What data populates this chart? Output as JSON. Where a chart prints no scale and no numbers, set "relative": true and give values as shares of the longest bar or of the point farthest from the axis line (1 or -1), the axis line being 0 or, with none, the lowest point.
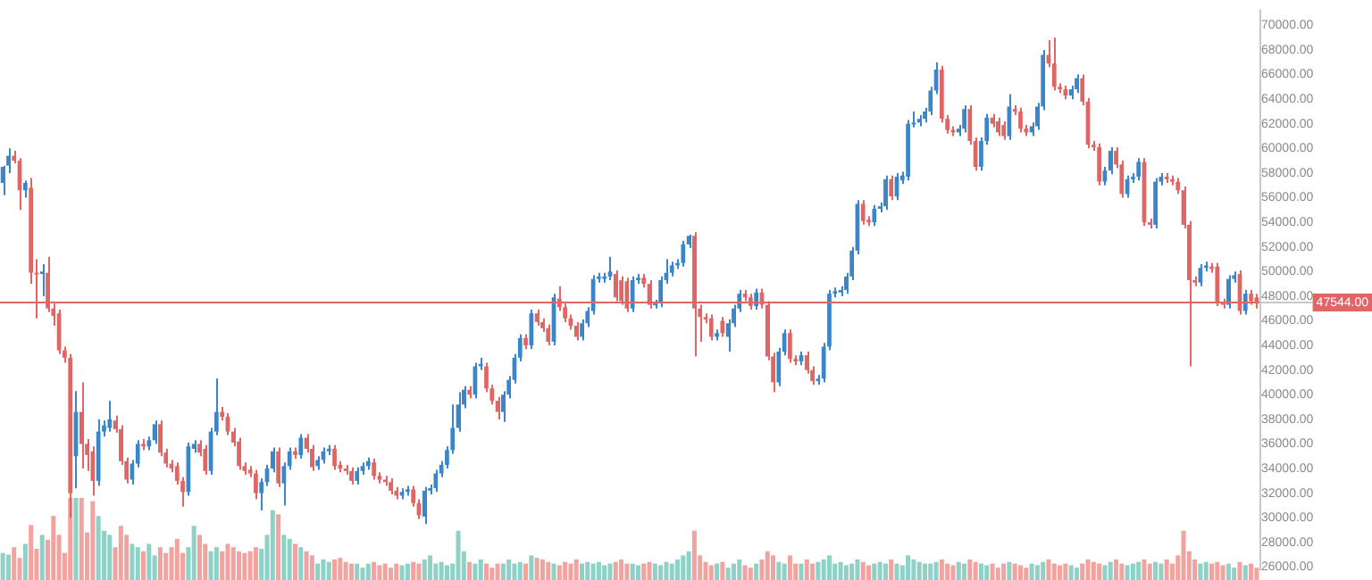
{
  "chart_data": [
    {
      "type": "candlestick",
      "categories": [
        null,
        null,
        null,
        null,
        null,
        null,
        null,
        null,
        null,
        null,
        null,
        null,
        null,
        null,
        null,
        null,
        null,
        null,
        null,
        null,
        null,
        null,
        null,
        null,
        null,
        null,
        null,
        null,
        null,
        null,
        null,
        null,
        null,
        null,
        null,
        null,
        null,
        null,
        null,
        null,
        null,
        null,
        null,
        null,
        null,
        null,
        null,
        null,
        null,
        null,
        null,
        null,
        null,
        null,
        null,
        null,
        null,
        null,
        null,
        null,
        null,
        null,
        null,
        null,
        null,
        null,
        null,
        null,
        null,
        null,
        null,
        null,
        null,
        null,
        null,
        null,
        null,
        null,
        null,
        null,
        null,
        null,
        null,
        null,
        null,
        null,
        null,
        null,
        null,
        null,
        null,
        null,
        null,
        null,
        null,
        null,
        null,
        null,
        null,
        null,
        null,
        null,
        null,
        null,
        null,
        null,
        null,
        null,
        null,
        null,
        null,
        null,
        null,
        null,
        null,
        null,
        null,
        null,
        null,
        null,
        null,
        null,
        null,
        null,
        null,
        null,
        null,
        null,
        null,
        null,
        null,
        null,
        null,
        null,
        null,
        null,
        null,
        null,
        null,
        null,
        null,
        null,
        null,
        null,
        null,
        null,
        null,
        null,
        null,
        null,
        null,
        null,
        null,
        null,
        null,
        null,
        null,
        null,
        null,
        null,
        null,
        null,
        null,
        null,
        null,
        null,
        null,
        null,
        null,
        null,
        null,
        null,
        null,
        null,
        null,
        null,
        null,
        null,
        null,
        null,
        null,
        null,
        null,
        null,
        null,
        null,
        null,
        null,
        null,
        null,
        null,
        null,
        null,
        null,
        null,
        null,
        null,
        null,
        null,
        null,
        null,
        null,
        null,
        null,
        null,
        null,
        null,
        null,
        null,
        null,
        null,
        null,
        null,
        null,
        null,
        null,
        null,
        null,
        null,
        null,
        null,
        null,
        null,
        null
      ],
      "ohlc": [
        [
          57200,
          58600,
          56200,
          58500
        ],
        [
          58600,
          60000,
          58000,
          59400
        ],
        [
          59400,
          59800,
          58800,
          59000
        ],
        [
          59000,
          59200,
          55000,
          56600
        ],
        [
          56600,
          57400,
          56000,
          57200
        ],
        [
          56800,
          57600,
          49000,
          49900
        ],
        [
          49900,
          51000,
          46200,
          49800
        ],
        [
          49800,
          50600,
          48000,
          50000
        ],
        [
          49900,
          51200,
          46700,
          47000
        ],
        [
          47000,
          47400,
          45600,
          46400
        ],
        [
          46600,
          46900,
          43300,
          43600
        ],
        [
          43600,
          43900,
          42600,
          43000
        ],
        [
          43000,
          43300,
          30000,
          32000
        ],
        [
          35000,
          40300,
          32400,
          38600
        ],
        [
          38600,
          41000,
          34000,
          36000
        ],
        [
          36000,
          36400,
          33800,
          35100
        ],
        [
          35400,
          35800,
          31800,
          33000
        ],
        [
          33000,
          38000,
          32600,
          37000
        ],
        [
          37000,
          37900,
          36600,
          37500
        ],
        [
          37300,
          39500,
          37000,
          38000
        ],
        [
          37900,
          38300,
          36900,
          37200
        ],
        [
          37200,
          37500,
          34300,
          34600
        ],
        [
          34600,
          34900,
          32800,
          33100
        ],
        [
          33100,
          34700,
          32700,
          34400
        ],
        [
          34400,
          36300,
          34100,
          36000
        ],
        [
          36000,
          36400,
          35500,
          35800
        ],
        [
          35800,
          36600,
          35500,
          36300
        ],
        [
          36300,
          37900,
          36000,
          37600
        ],
        [
          37600,
          37900,
          35000,
          35300
        ],
        [
          35300,
          35600,
          34100,
          34400
        ],
        [
          34400,
          34700,
          33700,
          34000
        ],
        [
          34200,
          34500,
          32700,
          33000
        ],
        [
          33000,
          33300,
          30900,
          32100
        ],
        [
          32100,
          36100,
          31800,
          35800
        ],
        [
          35600,
          36300,
          35300,
          36000
        ],
        [
          36000,
          36300,
          35000,
          35300
        ],
        [
          35600,
          35900,
          33500,
          33800
        ],
        [
          33800,
          37300,
          33500,
          37000
        ],
        [
          37000,
          41300,
          36700,
          38600
        ],
        [
          38600,
          39000,
          37900,
          38200
        ],
        [
          38200,
          38500,
          36700,
          37000
        ],
        [
          37000,
          37300,
          35800,
          36100
        ],
        [
          36200,
          36500,
          33900,
          34200
        ],
        [
          34200,
          34500,
          33500,
          33800
        ],
        [
          33900,
          34200,
          33300,
          33600
        ],
        [
          33600,
          33900,
          31500,
          32000
        ],
        [
          32000,
          33200,
          30600,
          32900
        ],
        [
          32900,
          34300,
          32600,
          34000
        ],
        [
          34000,
          35700,
          33700,
          35400
        ],
        [
          35400,
          35700,
          32500,
          32800
        ],
        [
          32800,
          34500,
          31000,
          34200
        ],
        [
          34200,
          35700,
          33900,
          35400
        ],
        [
          35400,
          35700,
          34800,
          35100
        ],
        [
          35100,
          36800,
          34800,
          36500
        ],
        [
          36500,
          36800,
          35300,
          35600
        ],
        [
          35600,
          35900,
          33800,
          34100
        ],
        [
          34200,
          35000,
          33900,
          34700
        ],
        [
          34700,
          35700,
          34400,
          35400
        ],
        [
          35400,
          35900,
          35100,
          35600
        ],
        [
          35600,
          35900,
          33900,
          34200
        ],
        [
          34300,
          34600,
          33700,
          34000
        ],
        [
          34000,
          34300,
          33500,
          33800
        ],
        [
          33800,
          34100,
          32700,
          33000
        ],
        [
          33000,
          34100,
          32700,
          33800
        ],
        [
          33800,
          34500,
          33500,
          34200
        ],
        [
          34200,
          34900,
          33900,
          34600
        ],
        [
          34500,
          34800,
          33100,
          33400
        ],
        [
          33400,
          33700,
          32800,
          33100
        ],
        [
          33100,
          33400,
          32600,
          32900
        ],
        [
          32900,
          33200,
          31900,
          32200
        ],
        [
          32200,
          32500,
          31500,
          31800
        ],
        [
          31800,
          32400,
          31500,
          32100
        ],
        [
          32100,
          32600,
          31800,
          32300
        ],
        [
          32300,
          32600,
          30900,
          31200
        ],
        [
          31200,
          31500,
          29900,
          30200
        ],
        [
          30100,
          32500,
          29500,
          32200
        ],
        [
          32200,
          32700,
          31900,
          32400
        ],
        [
          32400,
          33900,
          32100,
          33600
        ],
        [
          33600,
          34600,
          33300,
          34300
        ],
        [
          34300,
          35800,
          34000,
          35500
        ],
        [
          35500,
          39200,
          35200,
          37300
        ],
        [
          37300,
          40200,
          37000,
          39200
        ],
        [
          39200,
          40700,
          38900,
          40400
        ],
        [
          40400,
          40700,
          39700,
          40000
        ],
        [
          40000,
          42600,
          39700,
          42300
        ],
        [
          42300,
          43000,
          42000,
          42500
        ],
        [
          42300,
          42600,
          40200,
          40500
        ],
        [
          40500,
          40800,
          39200,
          39500
        ],
        [
          39500,
          39800,
          38000,
          38600
        ],
        [
          38600,
          40300,
          37800,
          40000
        ],
        [
          40000,
          41500,
          39700,
          41200
        ],
        [
          41200,
          43300,
          40900,
          43000
        ],
        [
          43000,
          44900,
          42700,
          44600
        ],
        [
          44600,
          44900,
          43700,
          44000
        ],
        [
          44000,
          46900,
          43700,
          46600
        ],
        [
          46600,
          46900,
          45600,
          45900
        ],
        [
          45900,
          46200,
          45100,
          45400
        ],
        [
          45400,
          45700,
          44000,
          44300
        ],
        [
          44300,
          48200,
          44000,
          47900
        ],
        [
          47800,
          48800,
          46800,
          47100
        ],
        [
          47100,
          47400,
          45900,
          46200
        ],
        [
          46200,
          46500,
          45300,
          45600
        ],
        [
          45600,
          45900,
          44400,
          44700
        ],
        [
          44700,
          46100,
          44400,
          45800
        ],
        [
          45800,
          47100,
          45500,
          46800
        ],
        [
          46800,
          49700,
          46500,
          49400
        ],
        [
          49400,
          49900,
          49100,
          49600
        ],
        [
          49400,
          49900,
          49100,
          49600
        ],
        [
          49600,
          51200,
          49300,
          50000
        ],
        [
          49800,
          50100,
          47600,
          47900
        ],
        [
          49300,
          49600,
          47300,
          47600
        ],
        [
          49200,
          49500,
          46700,
          47000
        ],
        [
          47000,
          49600,
          46700,
          49300
        ],
        [
          49300,
          49800,
          49000,
          49500
        ],
        [
          49500,
          49800,
          48700,
          49000
        ],
        [
          49000,
          49300,
          47000,
          47300
        ],
        [
          47300,
          47700,
          47000,
          47400
        ],
        [
          47400,
          49600,
          47100,
          49300
        ],
        [
          49300,
          51000,
          49000,
          49900
        ],
        [
          49900,
          50800,
          49600,
          50500
        ],
        [
          50500,
          51000,
          50200,
          50700
        ],
        [
          50700,
          52500,
          50400,
          52200
        ],
        [
          52200,
          53000,
          51900,
          52900
        ],
        [
          52900,
          53200,
          43100,
          47000
        ],
        [
          47000,
          47300,
          44300,
          46300
        ],
        [
          46300,
          46600,
          45800,
          46100
        ],
        [
          46200,
          46500,
          44400,
          44700
        ],
        [
          44700,
          45300,
          44400,
          45000
        ],
        [
          46000,
          46300,
          44700,
          45000
        ],
        [
          44700,
          46100,
          43500,
          45800
        ],
        [
          45800,
          47300,
          45500,
          47000
        ],
        [
          47000,
          48500,
          46700,
          48200
        ],
        [
          48200,
          48500,
          47600,
          47900
        ],
        [
          47900,
          48200,
          46900,
          47200
        ],
        [
          47200,
          48600,
          46900,
          48300
        ],
        [
          48300,
          48600,
          47000,
          47300
        ],
        [
          47300,
          47600,
          42800,
          43100
        ],
        [
          43100,
          43400,
          40200,
          41000
        ],
        [
          41000,
          43800,
          40700,
          43500
        ],
        [
          43500,
          45300,
          43200,
          45000
        ],
        [
          45000,
          45300,
          42600,
          42900
        ],
        [
          42900,
          43200,
          42400,
          42700
        ],
        [
          42700,
          43500,
          42400,
          43200
        ],
        [
          43200,
          43500,
          41700,
          42000
        ],
        [
          42000,
          42300,
          40800,
          41100
        ],
        [
          41100,
          41600,
          40800,
          41300
        ],
        [
          41300,
          44200,
          41000,
          43900
        ],
        [
          43900,
          48500,
          43600,
          48200
        ],
        [
          48200,
          48700,
          47900,
          48400
        ],
        [
          48300,
          48800,
          48000,
          48500
        ],
        [
          48500,
          49900,
          48200,
          49600
        ],
        [
          49600,
          52000,
          49300,
          51700
        ],
        [
          51700,
          55800,
          51400,
          55500
        ],
        [
          55500,
          55800,
          53800,
          54100
        ],
        [
          54200,
          54500,
          53700,
          54000
        ],
        [
          54000,
          55400,
          53700,
          55100
        ],
        [
          55100,
          55600,
          54800,
          55300
        ],
        [
          55300,
          57800,
          55000,
          57500
        ],
        [
          57500,
          57800,
          55800,
          56100
        ],
        [
          56100,
          58000,
          55800,
          57700
        ],
        [
          57400,
          58100,
          57100,
          57800
        ],
        [
          57700,
          62300,
          57400,
          62000
        ],
        [
          62000,
          63000,
          61700,
          62100
        ],
        [
          62100,
          62700,
          61800,
          62400
        ],
        [
          62400,
          63300,
          62100,
          63000
        ],
        [
          63000,
          65000,
          62700,
          64700
        ],
        [
          64700,
          67000,
          64400,
          66400
        ],
        [
          66400,
          66700,
          62100,
          62400
        ],
        [
          62400,
          62700,
          61200,
          61500
        ],
        [
          61500,
          61800,
          61000,
          61300
        ],
        [
          61300,
          61900,
          61000,
          61600
        ],
        [
          61600,
          63500,
          61300,
          63200
        ],
        [
          63200,
          63500,
          60300,
          60600
        ],
        [
          60600,
          60900,
          58200,
          58500
        ],
        [
          58500,
          60900,
          58200,
          60600
        ],
        [
          60600,
          62800,
          60300,
          62500
        ],
        [
          62500,
          62800,
          61700,
          62000
        ],
        [
          62200,
          62500,
          61000,
          61300
        ],
        [
          61900,
          62200,
          60700,
          61000
        ],
        [
          61000,
          64400,
          60700,
          63400
        ],
        [
          63200,
          63500,
          62700,
          63000
        ],
        [
          63000,
          63300,
          61300,
          61600
        ],
        [
          61600,
          61900,
          61000,
          61300
        ],
        [
          61300,
          62100,
          61000,
          61800
        ],
        [
          61800,
          63700,
          61500,
          63400
        ],
        [
          63400,
          68000,
          63100,
          67600
        ],
        [
          67600,
          68800,
          66600,
          66900
        ],
        [
          66900,
          69000,
          64700,
          65000
        ],
        [
          65000,
          65300,
          64500,
          64800
        ],
        [
          64800,
          65100,
          64000,
          64300
        ],
        [
          64300,
          65100,
          64000,
          64800
        ],
        [
          64800,
          66000,
          64500,
          65700
        ],
        [
          65700,
          66000,
          63500,
          63800
        ],
        [
          63800,
          64100,
          60000,
          60300
        ],
        [
          60300,
          60600,
          59800,
          60100
        ],
        [
          60100,
          60400,
          57000,
          57300
        ],
        [
          57300,
          58500,
          57000,
          58200
        ],
        [
          58200,
          60100,
          57900,
          59800
        ],
        [
          59800,
          60100,
          58400,
          58700
        ],
        [
          58700,
          59000,
          56000,
          56300
        ],
        [
          56300,
          57800,
          56000,
          57500
        ],
        [
          57500,
          58000,
          57200,
          57700
        ],
        [
          57700,
          59200,
          57400,
          58900
        ],
        [
          58900,
          59200,
          53700,
          54000
        ],
        [
          54000,
          54300,
          53500,
          53800
        ],
        [
          53800,
          57600,
          53500,
          57300
        ],
        [
          57300,
          58000,
          57000,
          57700
        ],
        [
          57700,
          58000,
          57200,
          57500
        ],
        [
          57500,
          57800,
          57000,
          57300
        ],
        [
          57300,
          57600,
          56300,
          56600
        ],
        [
          56600,
          56900,
          53500,
          53800
        ],
        [
          53800,
          54100,
          42300,
          49300
        ],
        [
          49300,
          49600,
          48800,
          49100
        ],
        [
          49100,
          50600,
          48800,
          50300
        ],
        [
          50300,
          50800,
          50000,
          50500
        ],
        [
          50400,
          50700,
          49900,
          50200
        ],
        [
          50400,
          50700,
          47200,
          47500
        ],
        [
          47500,
          47800,
          47000,
          47300
        ],
        [
          47300,
          49700,
          47000,
          49400
        ],
        [
          49400,
          50000,
          49100,
          49700
        ],
        [
          49800,
          50100,
          46500,
          46800
        ],
        [
          46800,
          48500,
          46500,
          48200
        ],
        [
          48200,
          48500,
          47300,
          47600
        ],
        [
          47900,
          48200,
          47000,
          47544
        ]
      ],
      "colors": [
        "#3a86c8",
        "#3a86c8",
        "#e06666",
        "#e06666",
        "#3a86c8",
        "#e06666",
        "#e06666",
        "#3a86c8",
        "#e06666",
        "#e06666",
        "#e06666",
        "#e06666",
        "#e06666",
        "#3a86c8",
        "#e06666",
        "#e06666",
        "#e06666",
        "#3a86c8",
        "#3a86c8",
        "#3a86c8",
        "#e06666",
        "#e06666",
        "#e06666",
        "#3a86c8",
        "#3a86c8",
        "#e06666",
        "#3a86c8",
        "#3a86c8",
        "#e06666",
        "#e06666",
        "#e06666",
        "#e06666",
        "#e06666",
        "#3a86c8",
        "#3a86c8",
        "#e06666",
        "#e06666",
        "#3a86c8",
        "#3a86c8",
        "#e06666",
        "#e06666",
        "#e06666",
        "#e06666",
        "#e06666",
        "#e06666",
        "#e06666",
        "#3a86c8",
        "#3a86c8",
        "#3a86c8",
        "#e06666",
        "#3a86c8",
        "#3a86c8",
        "#e06666",
        "#3a86c8",
        "#e06666",
        "#e06666",
        "#3a86c8",
        "#3a86c8",
        "#3a86c8",
        "#e06666",
        "#e06666",
        "#e06666",
        "#e06666",
        "#3a86c8",
        "#3a86c8",
        "#3a86c8",
        "#e06666",
        "#e06666",
        "#e06666",
        "#e06666",
        "#e06666",
        "#3a86c8",
        "#3a86c8",
        "#e06666",
        "#e06666",
        "#3a86c8",
        "#3a86c8",
        "#3a86c8",
        "#3a86c8",
        "#3a86c8",
        "#3a86c8",
        "#3a86c8",
        "#3a86c8",
        "#e06666",
        "#3a86c8",
        "#3a86c8",
        "#e06666",
        "#e06666",
        "#e06666",
        "#3a86c8",
        "#3a86c8",
        "#3a86c8",
        "#3a86c8",
        "#e06666",
        "#3a86c8",
        "#e06666",
        "#e06666",
        "#e06666",
        "#3a86c8",
        "#e06666",
        "#e06666",
        "#e06666",
        "#e06666",
        "#3a86c8",
        "#3a86c8",
        "#3a86c8",
        "#3a86c8",
        "#3a86c8",
        "#3a86c8",
        "#e06666",
        "#e06666",
        "#e06666",
        "#3a86c8",
        "#3a86c8",
        "#e06666",
        "#e06666",
        "#3a86c8",
        "#3a86c8",
        "#3a86c8",
        "#3a86c8",
        "#3a86c8",
        "#3a86c8",
        "#3a86c8",
        "#e06666",
        "#e06666",
        "#e06666",
        "#e06666",
        "#3a86c8",
        "#e06666",
        "#3a86c8",
        "#3a86c8",
        "#3a86c8",
        "#e06666",
        "#e06666",
        "#3a86c8",
        "#e06666",
        "#e06666",
        "#e06666",
        "#3a86c8",
        "#3a86c8",
        "#e06666",
        "#e06666",
        "#3a86c8",
        "#e06666",
        "#e06666",
        "#3a86c8",
        "#3a86c8",
        "#3a86c8",
        "#3a86c8",
        "#3a86c8",
        "#3a86c8",
        "#3a86c8",
        "#3a86c8",
        "#e06666",
        "#e06666",
        "#3a86c8",
        "#3a86c8",
        "#3a86c8",
        "#e06666",
        "#3a86c8",
        "#3a86c8",
        "#3a86c8",
        "#3a86c8",
        "#3a86c8",
        "#3a86c8",
        "#3a86c8",
        "#3a86c8",
        "#e06666",
        "#e06666",
        "#e06666",
        "#3a86c8",
        "#3a86c8",
        "#e06666",
        "#e06666",
        "#3a86c8",
        "#3a86c8",
        "#e06666",
        "#e06666",
        "#e06666",
        "#3a86c8",
        "#e06666",
        "#e06666",
        "#e06666",
        "#3a86c8",
        "#3a86c8",
        "#3a86c8",
        "#e06666",
        "#e06666",
        "#e06666",
        "#e06666",
        "#3a86c8",
        "#3a86c8",
        "#e06666",
        "#e06666",
        "#e06666",
        "#e06666",
        "#3a86c8",
        "#3a86c8",
        "#e06666",
        "#e06666",
        "#3a86c8",
        "#3a86c8",
        "#3a86c8",
        "#e06666",
        "#e06666",
        "#3a86c8",
        "#3a86c8",
        "#e06666",
        "#e06666",
        "#e06666",
        "#e06666",
        "#e06666",
        "#e06666",
        "#3a86c8",
        "#3a86c8",
        "#e06666",
        "#e06666",
        "#e06666",
        "#3a86c8",
        "#3a86c8",
        "#e06666",
        "#3a86c8",
        "#e06666",
        "#e06666"
      ],
      "ylim": [
        25700,
        71300
      ],
      "yticks": [
        {
          "value": 26000,
          "label": "26000.00"
        },
        {
          "value": 28000,
          "label": "28000.00"
        },
        {
          "value": 30000,
          "label": "30000.00"
        },
        {
          "value": 32000,
          "label": "32000.00"
        },
        {
          "value": 34000,
          "label": "34000.00"
        },
        {
          "value": 36000,
          "label": "36000.00"
        },
        {
          "value": 38000,
          "label": "38000.00"
        },
        {
          "value": 40000,
          "label": "40000.00"
        },
        {
          "value": 42000,
          "label": "42000.00"
        },
        {
          "value": 44000,
          "label": "44000.00"
        },
        {
          "value": 46000,
          "label": "46000.00"
        },
        {
          "value": 48000,
          "label": "48000.00"
        },
        {
          "value": 50000,
          "label": "50000.00"
        },
        {
          "value": 52000,
          "label": "52000.00"
        },
        {
          "value": 54000,
          "label": "54000.00"
        },
        {
          "value": 56000,
          "label": "56000.00"
        },
        {
          "value": 58000,
          "label": "58000.00"
        },
        {
          "value": 60000,
          "label": "60000.00"
        },
        {
          "value": 62000,
          "label": "62000.00"
        },
        {
          "value": 64000,
          "label": "64000.00"
        },
        {
          "value": 66000,
          "label": "66000.00"
        },
        {
          "value": 68000,
          "label": "68000.00"
        },
        {
          "value": 70000,
          "label": "70000.00"
        }
      ],
      "ref_lines": [
        {
          "axis": "y",
          "value": 47544,
          "label": "47544.00",
          "color": "#e06666"
        }
      ]
    },
    {
      "type": "bar",
      "relative": true,
      "categories": [
        null,
        null,
        null,
        null,
        null,
        null,
        null,
        null,
        null,
        null,
        null,
        null,
        null,
        null,
        null,
        null,
        null,
        null,
        null,
        null,
        null,
        null,
        null,
        null,
        null,
        null,
        null,
        null,
        null,
        null,
        null,
        null,
        null,
        null,
        null,
        null,
        null,
        null,
        null,
        null,
        null,
        null,
        null,
        null,
        null,
        null,
        null,
        null,
        null,
        null,
        null,
        null,
        null,
        null,
        null,
        null,
        null,
        null,
        null,
        null,
        null,
        null,
        null,
        null,
        null,
        null,
        null,
        null,
        null,
        null,
        null,
        null,
        null,
        null,
        null,
        null,
        null,
        null,
        null,
        null,
        null,
        null,
        null,
        null,
        null,
        null,
        null,
        null,
        null,
        null,
        null,
        null,
        null,
        null,
        null,
        null,
        null,
        null,
        null,
        null,
        null,
        null,
        null,
        null,
        null,
        null,
        null,
        null,
        null,
        null,
        null,
        null,
        null,
        null,
        null,
        null,
        null,
        null,
        null,
        null,
        null,
        null,
        null,
        null,
        null,
        null,
        null,
        null,
        null,
        null,
        null,
        null,
        null,
        null,
        null,
        null,
        null,
        null,
        null,
        null,
        null,
        null,
        null,
        null,
        null,
        null,
        null,
        null,
        null,
        null,
        null,
        null,
        null,
        null,
        null,
        null,
        null,
        null,
        null,
        null,
        null,
        null,
        null,
        null,
        null,
        null,
        null,
        null,
        null,
        null,
        null,
        null,
        null,
        null,
        null,
        null,
        null,
        null,
        null,
        null,
        null,
        null,
        null,
        null,
        null,
        null,
        null,
        null,
        null,
        null,
        null,
        null,
        null,
        null,
        null,
        null,
        null,
        null,
        null,
        null,
        null,
        null,
        null,
        null,
        null,
        null,
        null,
        null,
        null,
        null,
        null,
        null,
        null,
        null,
        null,
        null,
        null,
        null,
        null,
        null,
        null,
        null,
        null,
        null
      ],
      "values": [
        0.33,
        0.31,
        0.4,
        0.27,
        0.44,
        0.67,
        0.38,
        0.55,
        0.49,
        0.78,
        0.55,
        0.33,
        1.0,
        1.0,
        1.0,
        0.58,
        0.96,
        0.78,
        0.6,
        0.55,
        0.4,
        0.66,
        0.55,
        0.44,
        0.4,
        0.35,
        0.44,
        0.3,
        0.4,
        0.33,
        0.4,
        0.5,
        0.33,
        0.4,
        0.66,
        0.55,
        0.44,
        0.35,
        0.4,
        0.35,
        0.44,
        0.4,
        0.35,
        0.33,
        0.35,
        0.4,
        0.38,
        0.55,
        0.85,
        0.8,
        0.55,
        0.5,
        0.44,
        0.4,
        0.35,
        0.3,
        0.2,
        0.25,
        0.22,
        0.25,
        0.27,
        0.22,
        0.2,
        0.2,
        0.15,
        0.2,
        0.22,
        0.18,
        0.2,
        0.15,
        0.2,
        0.18,
        0.2,
        0.22,
        0.2,
        0.25,
        0.3,
        0.2,
        0.22,
        0.18,
        0.2,
        0.6,
        0.35,
        0.22,
        0.2,
        0.25,
        0.2,
        0.15,
        0.2,
        0.2,
        0.25,
        0.2,
        0.22,
        0.2,
        0.3,
        0.27,
        0.25,
        0.22,
        0.2,
        0.18,
        0.22,
        0.2,
        0.25,
        0.2,
        0.22,
        0.2,
        0.22,
        0.18,
        0.2,
        0.22,
        0.25,
        0.2,
        0.2,
        0.18,
        0.2,
        0.22,
        0.2,
        0.18,
        0.22,
        0.2,
        0.25,
        0.3,
        0.35,
        0.6,
        0.3,
        0.22,
        0.18,
        0.2,
        0.22,
        0.15,
        0.2,
        0.25,
        0.18,
        0.15,
        0.2,
        0.25,
        0.35,
        0.3,
        0.22,
        0.2,
        0.3,
        0.2,
        0.2,
        0.25,
        0.2,
        0.22,
        0.25,
        0.3,
        0.2,
        0.22,
        0.18,
        0.2,
        0.25,
        0.22,
        0.18,
        0.2,
        0.22,
        0.2,
        0.25,
        0.2,
        0.18,
        0.3,
        0.25,
        0.22,
        0.2,
        0.2,
        0.22,
        0.25,
        0.2,
        0.18,
        0.22,
        0.2,
        0.25,
        0.22,
        0.2,
        0.18,
        0.2,
        0.15,
        0.2,
        0.22,
        0.2,
        0.18,
        0.15,
        0.2,
        0.18,
        0.22,
        0.25,
        0.2,
        0.18,
        0.2,
        0.18,
        0.15,
        0.2,
        0.25,
        0.22,
        0.2,
        0.18,
        0.22,
        0.25,
        0.2,
        0.18,
        0.2,
        0.22,
        0.25,
        0.2,
        0.22,
        0.2,
        0.25,
        0.2,
        0.3,
        0.6,
        0.35,
        0.25,
        0.2,
        0.22,
        0.2,
        0.22,
        0.18,
        0.2,
        0.15,
        0.22,
        0.18,
        0.2,
        0.15
      ],
      "colors": [
        "#8ed1c6",
        "#8ed1c6",
        "#f3a39f",
        "#f3a39f",
        "#8ed1c6",
        "#f3a39f",
        "#f3a39f",
        "#8ed1c6",
        "#f3a39f",
        "#f3a39f",
        "#f3a39f",
        "#f3a39f",
        "#f3a39f",
        "#8ed1c6",
        "#f3a39f",
        "#f3a39f",
        "#f3a39f",
        "#8ed1c6",
        "#8ed1c6",
        "#8ed1c6",
        "#f3a39f",
        "#f3a39f",
        "#f3a39f",
        "#8ed1c6",
        "#8ed1c6",
        "#f3a39f",
        "#8ed1c6",
        "#8ed1c6",
        "#f3a39f",
        "#f3a39f",
        "#f3a39f",
        "#f3a39f",
        "#f3a39f",
        "#8ed1c6",
        "#8ed1c6",
        "#f3a39f",
        "#f3a39f",
        "#8ed1c6",
        "#8ed1c6",
        "#f3a39f",
        "#f3a39f",
        "#f3a39f",
        "#f3a39f",
        "#f3a39f",
        "#f3a39f",
        "#f3a39f",
        "#8ed1c6",
        "#8ed1c6",
        "#8ed1c6",
        "#f3a39f",
        "#8ed1c6",
        "#8ed1c6",
        "#f3a39f",
        "#8ed1c6",
        "#f3a39f",
        "#f3a39f",
        "#8ed1c6",
        "#8ed1c6",
        "#8ed1c6",
        "#f3a39f",
        "#f3a39f",
        "#f3a39f",
        "#f3a39f",
        "#8ed1c6",
        "#8ed1c6",
        "#8ed1c6",
        "#f3a39f",
        "#f3a39f",
        "#f3a39f",
        "#f3a39f",
        "#f3a39f",
        "#8ed1c6",
        "#8ed1c6",
        "#f3a39f",
        "#f3a39f",
        "#8ed1c6",
        "#8ed1c6",
        "#8ed1c6",
        "#8ed1c6",
        "#8ed1c6",
        "#8ed1c6",
        "#8ed1c6",
        "#8ed1c6",
        "#f3a39f",
        "#8ed1c6",
        "#8ed1c6",
        "#f3a39f",
        "#f3a39f",
        "#f3a39f",
        "#8ed1c6",
        "#8ed1c6",
        "#8ed1c6",
        "#8ed1c6",
        "#f3a39f",
        "#8ed1c6",
        "#f3a39f",
        "#f3a39f",
        "#f3a39f",
        "#8ed1c6",
        "#f3a39f",
        "#f3a39f",
        "#f3a39f",
        "#f3a39f",
        "#8ed1c6",
        "#8ed1c6",
        "#8ed1c6",
        "#8ed1c6",
        "#8ed1c6",
        "#8ed1c6",
        "#f3a39f",
        "#f3a39f",
        "#f3a39f",
        "#8ed1c6",
        "#8ed1c6",
        "#f3a39f",
        "#f3a39f",
        "#8ed1c6",
        "#8ed1c6",
        "#8ed1c6",
        "#8ed1c6",
        "#8ed1c6",
        "#8ed1c6",
        "#8ed1c6",
        "#f3a39f",
        "#f3a39f",
        "#f3a39f",
        "#f3a39f",
        "#8ed1c6",
        "#f3a39f",
        "#8ed1c6",
        "#8ed1c6",
        "#8ed1c6",
        "#f3a39f",
        "#f3a39f",
        "#8ed1c6",
        "#f3a39f",
        "#f3a39f",
        "#f3a39f",
        "#8ed1c6",
        "#8ed1c6",
        "#f3a39f",
        "#f3a39f",
        "#8ed1c6",
        "#f3a39f",
        "#f3a39f",
        "#8ed1c6",
        "#8ed1c6",
        "#8ed1c6",
        "#8ed1c6",
        "#8ed1c6",
        "#8ed1c6",
        "#8ed1c6",
        "#8ed1c6",
        "#f3a39f",
        "#f3a39f",
        "#8ed1c6",
        "#8ed1c6",
        "#8ed1c6",
        "#f3a39f",
        "#8ed1c6",
        "#8ed1c6",
        "#8ed1c6",
        "#8ed1c6",
        "#8ed1c6",
        "#8ed1c6",
        "#8ed1c6",
        "#8ed1c6",
        "#f3a39f",
        "#f3a39f",
        "#f3a39f",
        "#8ed1c6",
        "#8ed1c6",
        "#f3a39f",
        "#f3a39f",
        "#8ed1c6",
        "#8ed1c6",
        "#f3a39f",
        "#f3a39f",
        "#f3a39f",
        "#8ed1c6",
        "#f3a39f",
        "#f3a39f",
        "#f3a39f",
        "#8ed1c6",
        "#8ed1c6",
        "#8ed1c6",
        "#f3a39f",
        "#f3a39f",
        "#f3a39f",
        "#f3a39f",
        "#8ed1c6",
        "#8ed1c6",
        "#f3a39f",
        "#f3a39f",
        "#f3a39f",
        "#f3a39f",
        "#8ed1c6",
        "#8ed1c6",
        "#f3a39f",
        "#f3a39f",
        "#8ed1c6",
        "#8ed1c6",
        "#8ed1c6",
        "#f3a39f",
        "#f3a39f",
        "#8ed1c6",
        "#8ed1c6",
        "#f3a39f",
        "#f3a39f",
        "#f3a39f",
        "#f3a39f",
        "#f3a39f",
        "#f3a39f",
        "#8ed1c6",
        "#8ed1c6",
        "#f3a39f",
        "#f3a39f",
        "#f3a39f",
        "#8ed1c6",
        "#8ed1c6",
        "#f3a39f",
        "#8ed1c6",
        "#f3a39f",
        "#f3a39f"
      ]
    }
  ]
}
